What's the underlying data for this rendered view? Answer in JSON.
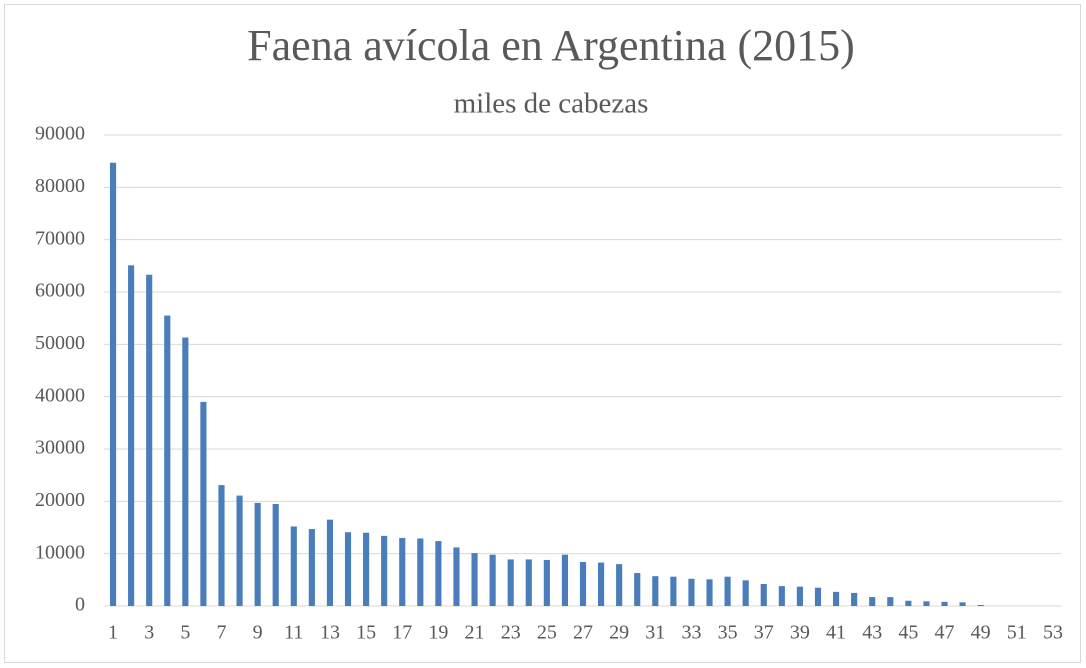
{
  "chart_data": {
    "type": "bar",
    "title": "Faena avícola en Argentina (2015)",
    "subtitle": "miles de cabezas",
    "categories": [
      1,
      null,
      3,
      null,
      5,
      null,
      7,
      null,
      9,
      null,
      11,
      null,
      13,
      null,
      15,
      null,
      17,
      null,
      19,
      null,
      21,
      null,
      23,
      null,
      25,
      null,
      27,
      null,
      29,
      null,
      31,
      null,
      33,
      null,
      35,
      null,
      37,
      null,
      39,
      null,
      41,
      null,
      43,
      null,
      45,
      null,
      47,
      null,
      49,
      null,
      51,
      null,
      53
    ],
    "values": [
      84700,
      65100,
      63300,
      55500,
      51300,
      39000,
      23100,
      21100,
      19700,
      19500,
      15200,
      14700,
      16500,
      14100,
      14000,
      13400,
      13000,
      12900,
      12400,
      11200,
      10100,
      9800,
      8900,
      8900,
      8800,
      9800,
      8400,
      8300,
      8000,
      6300,
      5700,
      5600,
      5200,
      5100,
      5600,
      4900,
      4200,
      3800,
      3700,
      3500,
      2700,
      2500,
      1700,
      1700,
      1000,
      900,
      800,
      700,
      200,
      0,
      0,
      0,
      0
    ],
    "color": "#4a7ebb",
    "ylim": [
      0,
      90000
    ],
    "yticks": [
      0,
      10000,
      20000,
      30000,
      40000,
      50000,
      60000,
      70000,
      80000,
      90000
    ],
    "grid": true
  }
}
